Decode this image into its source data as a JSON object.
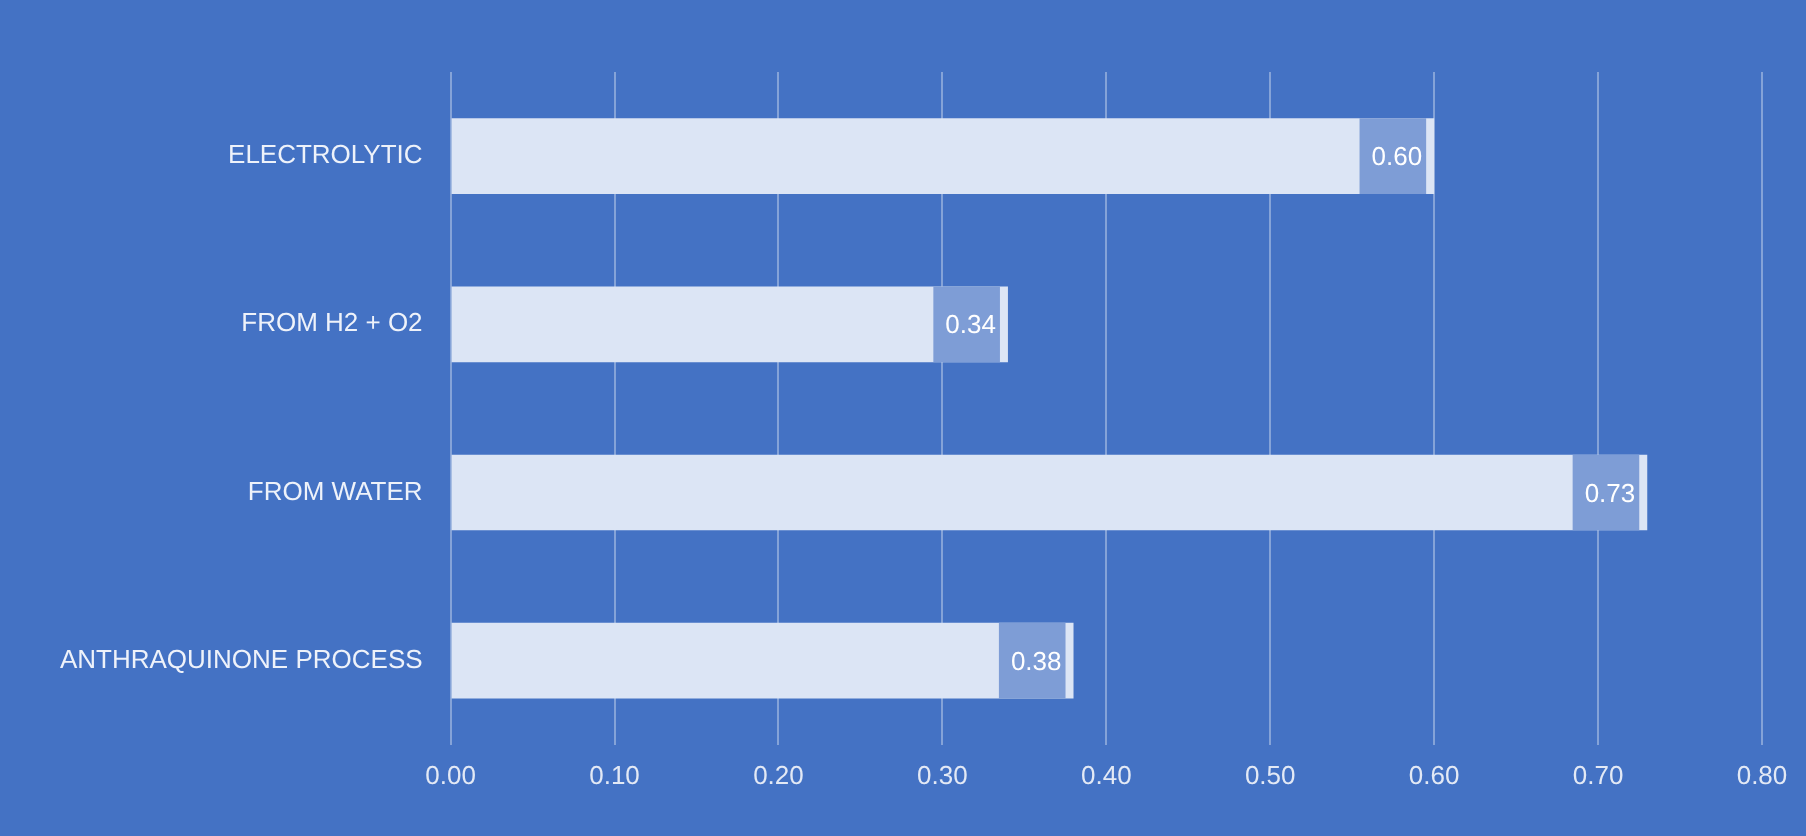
{
  "chart_data": {
    "type": "bar",
    "orientation": "horizontal",
    "categories": [
      "ELECTROLYTIC",
      "FROM H2 + O2",
      "FROM WATER",
      "ANTHRAQUINONE PROCESS"
    ],
    "values": [
      0.6,
      0.34,
      0.73,
      0.38
    ],
    "color": "#dce5f5",
    "xlim": [
      0,
      0.8
    ],
    "xticks": [
      {
        "value": 0,
        "label": "0.00"
      },
      {
        "value": 0.1,
        "label": "0.10"
      },
      {
        "value": 0.2,
        "label": "0.20"
      },
      {
        "value": 0.3,
        "label": "0.30"
      },
      {
        "value": 0.4,
        "label": "0.40"
      },
      {
        "value": 0.5,
        "label": "0.50"
      },
      {
        "value": 0.6,
        "label": "0.60"
      },
      {
        "value": 0.7,
        "label": "0.70"
      },
      {
        "value": 0.8,
        "label": "0.80"
      }
    ],
    "value_labels": [
      "0.60",
      "0.34",
      "0.73",
      "0.38"
    ],
    "grid": "x",
    "legend": false
  }
}
